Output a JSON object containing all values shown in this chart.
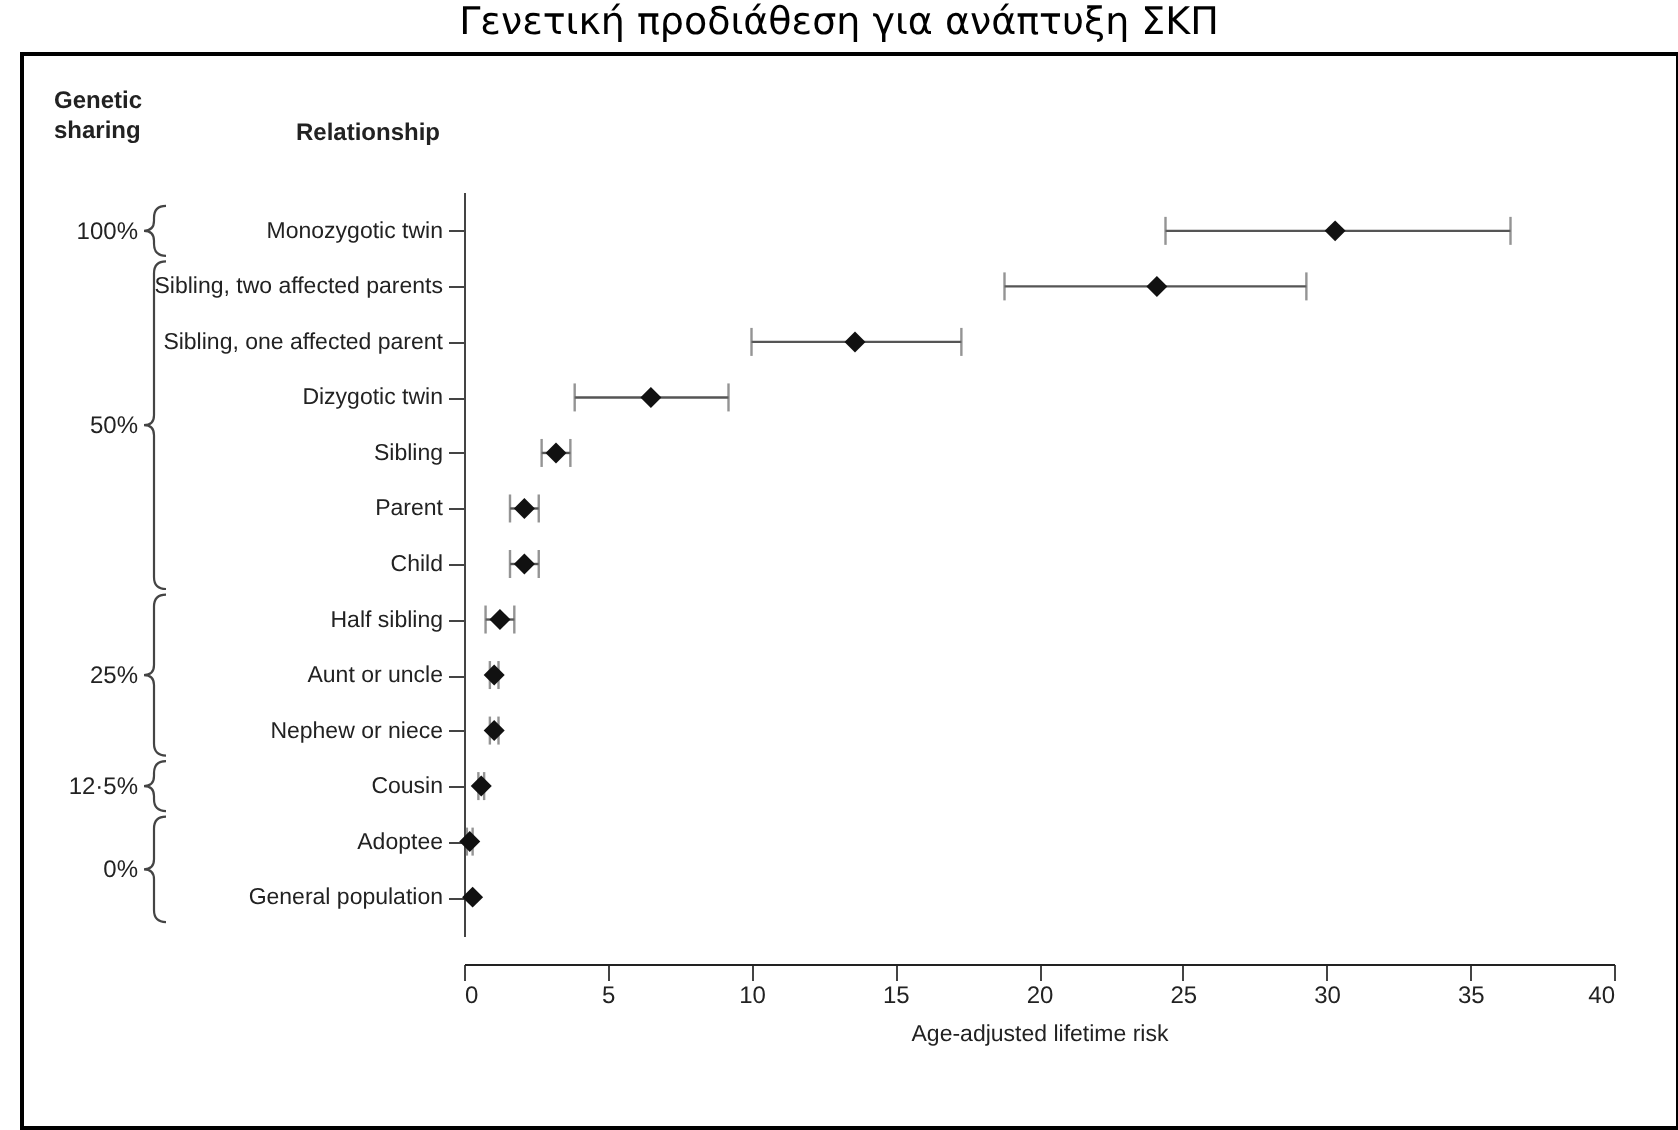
{
  "chart_data": {
    "type": "scatter",
    "orientation": "horizontal",
    "title": "Γενετική προδιάθεση για ανάπτυξη ΣΚΠ",
    "xlabel": "Age-adjusted lifetime risk",
    "ylabel": "Relationship",
    "categories": [
      "Monozygotic twin",
      "Sibling, two affected parents",
      "Sibling, one affected parent",
      "Dizygotic twin",
      "Sibling",
      "Parent",
      "Child",
      "Half sibling",
      "Aunt or uncle",
      "Nephew or niece",
      "Cousin",
      "Adoptee",
      "General population"
    ],
    "series": [
      {
        "color": "#111111",
        "values": [
          30.3,
          24.1,
          13.6,
          6.5,
          3.2,
          2.1,
          2.1,
          1.25,
          1.05,
          1.05,
          0.6,
          0.2,
          0.3
        ],
        "errors": [
          [
            24.4,
            36.4
          ],
          [
            18.8,
            29.3
          ],
          [
            10.0,
            17.3
          ],
          [
            3.85,
            9.2
          ],
          [
            2.7,
            3.7
          ],
          [
            1.6,
            2.6
          ],
          [
            1.6,
            2.6
          ],
          [
            0.75,
            1.75
          ],
          [
            0.9,
            1.2
          ],
          [
            0.9,
            1.2
          ],
          [
            0.5,
            0.7
          ],
          [
            0.1,
            0.3
          ],
          null
        ]
      }
    ],
    "xlim": [
      0,
      40
    ],
    "xticks": [
      0,
      5,
      10,
      15,
      20,
      25,
      30,
      35,
      40
    ],
    "marker": "diamond",
    "grid": false,
    "annotations": [
      "Genetic sharing",
      "100%",
      "50%",
      "25%",
      "12·5%",
      "0%"
    ]
  }
}
